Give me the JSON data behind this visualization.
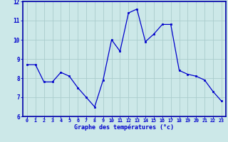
{
  "hours": [
    0,
    1,
    2,
    3,
    4,
    5,
    6,
    7,
    8,
    9,
    10,
    11,
    12,
    13,
    14,
    15,
    16,
    17,
    18,
    19,
    20,
    21,
    22,
    23
  ],
  "temperatures": [
    8.7,
    8.7,
    7.8,
    7.8,
    8.3,
    8.1,
    7.5,
    7.0,
    6.5,
    7.9,
    10.0,
    9.4,
    11.4,
    11.6,
    9.9,
    10.3,
    10.8,
    10.8,
    8.4,
    8.2,
    8.1,
    7.9,
    7.3,
    6.8
  ],
  "xlabel": "Graphe des températures (°c)",
  "ylim": [
    6,
    12
  ],
  "yticks": [
    6,
    7,
    8,
    9,
    10,
    11,
    12
  ],
  "xticks": [
    0,
    1,
    2,
    3,
    4,
    5,
    6,
    7,
    8,
    9,
    10,
    11,
    12,
    13,
    14,
    15,
    16,
    17,
    18,
    19,
    20,
    21,
    22,
    23
  ],
  "line_color": "#0000cc",
  "marker_color": "#0000cc",
  "bg_color": "#cce8e8",
  "grid_color": "#aacccc",
  "tick_color": "#0000cc",
  "xlabel_color": "#0000cc",
  "spine_color": "#0000aa"
}
